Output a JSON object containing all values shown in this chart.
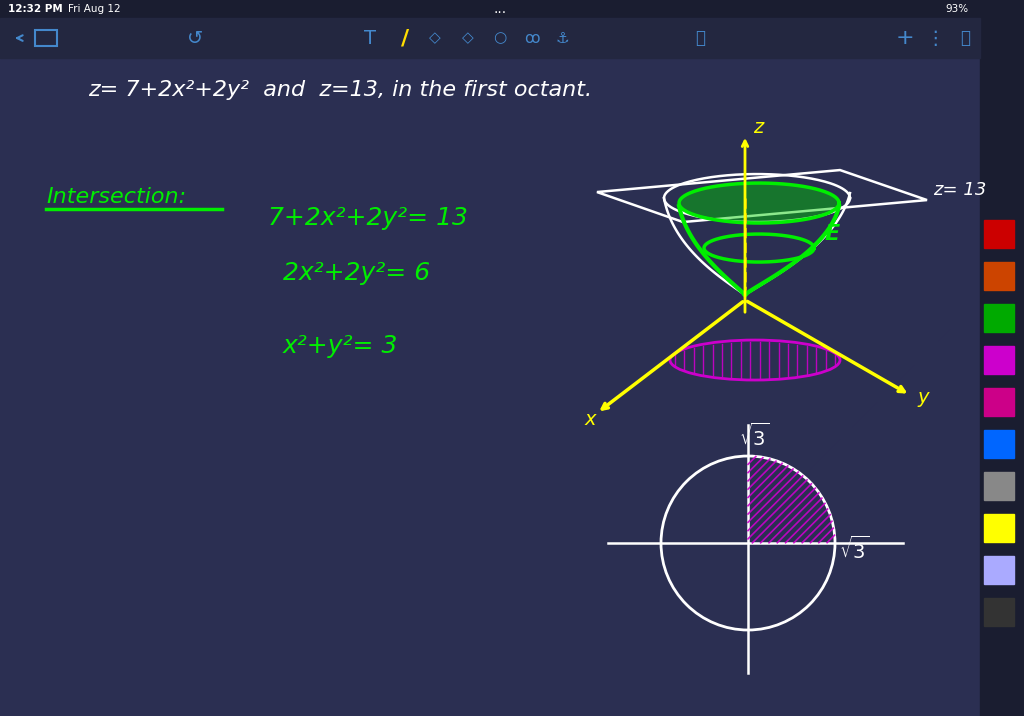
{
  "bg_color": "#2b2f52",
  "toolbar_top_color": "#1a1d30",
  "toolbar2_color": "#232740",
  "top_text_color": "#ffffff",
  "intersection_label_color": "#00ee00",
  "underline_color": "#00ee00",
  "eq_color": "#00ee00",
  "z_color": "#ffff00",
  "z_eq13_color": "#ffffff",
  "E_color": "#00ee00",
  "y_color": "#ffff00",
  "x_color": "#ffff00",
  "sqrt3_color": "#ffffff",
  "time_text": "12:32 PM",
  "date_text": "Fri Aug 12",
  "battery_text": "93%",
  "paraboloid_color": "#00ee00",
  "dashed_color": "#ddaa00",
  "plane_color": "#ffffff",
  "ellipse_xy_color": "#cc00cc",
  "circle_color": "#ffffff",
  "first_quadrant_hatch": "#cc00cc",
  "axis_yellow_color": "#ffff00",
  "axis_white_color": "#ffffff",
  "right_panel_color": "#1a1d30",
  "toolbar_icon_color": "#4488cc"
}
